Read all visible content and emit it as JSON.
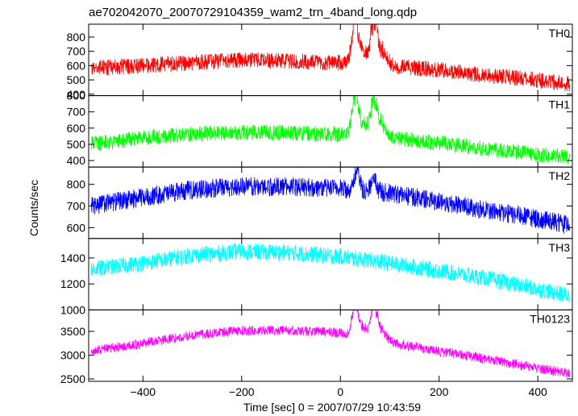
{
  "title": "ae702042070_20070729104359_wam2_trn_4band_long.qdp",
  "xlabel": "Time [sec] 0 = 2007/07/29 10:43:59",
  "ylabel": "Counts/sec",
  "chart_data": {
    "type": "line",
    "title": "ae702042070_20070729104359_wam2_trn_4band_long.qdp",
    "xlabel": "Time [sec] 0 = 2007/07/29 10:43:59",
    "ylabel": "Counts/sec",
    "xlim": [
      -510,
      470
    ],
    "xticks": [
      -400,
      -200,
      0,
      200,
      400
    ],
    "grid": false,
    "legend": "none (band names printed in top-right of each panel)",
    "panels": [
      {
        "name": "TH0",
        "color": "#ff0000",
        "ylim": [
          390,
          890
        ],
        "yticks": [
          400,
          500,
          600,
          700,
          800
        ],
        "noise": 70,
        "trend": [
          [
            -510,
            580
          ],
          [
            -400,
            600
          ],
          [
            -300,
            620
          ],
          [
            -200,
            640
          ],
          [
            -100,
            630
          ],
          [
            0,
            620
          ],
          [
            100,
            600
          ],
          [
            200,
            570
          ],
          [
            300,
            530
          ],
          [
            400,
            500
          ],
          [
            465,
            470
          ]
        ],
        "peaks": [
          [
            30,
            300,
            6
          ],
          [
            68,
            300,
            6
          ],
          [
            48,
            90,
            10
          ],
          [
            82,
            110,
            10
          ]
        ]
      },
      {
        "name": "TH1",
        "color": "#00ff00",
        "ylim": [
          360,
          800
        ],
        "yticks": [
          400,
          500,
          600,
          700,
          800
        ],
        "noise": 60,
        "trend": [
          [
            -510,
            500
          ],
          [
            -400,
            540
          ],
          [
            -300,
            565
          ],
          [
            -200,
            575
          ],
          [
            -100,
            570
          ],
          [
            0,
            560
          ],
          [
            100,
            540
          ],
          [
            200,
            510
          ],
          [
            300,
            470
          ],
          [
            400,
            440
          ],
          [
            465,
            420
          ]
        ],
        "peaks": [
          [
            30,
            270,
            6
          ],
          [
            68,
            200,
            6
          ],
          [
            48,
            70,
            10
          ],
          [
            82,
            90,
            10
          ]
        ]
      },
      {
        "name": "TH2",
        "color": "#0000ff",
        "ylim": [
          550,
          880
        ],
        "yticks": [
          600,
          700,
          800
        ],
        "noise": 55,
        "trend": [
          [
            -510,
            700
          ],
          [
            -400,
            740
          ],
          [
            -300,
            775
          ],
          [
            -200,
            790
          ],
          [
            -100,
            790
          ],
          [
            0,
            780
          ],
          [
            100,
            760
          ],
          [
            200,
            720
          ],
          [
            300,
            680
          ],
          [
            400,
            640
          ],
          [
            465,
            610
          ]
        ],
        "peaks": [
          [
            33,
            80,
            6
          ],
          [
            68,
            60,
            6
          ]
        ]
      },
      {
        "name": "TH3",
        "color": "#00ffff",
        "ylim": [
          1000,
          1550
        ],
        "yticks": [
          1000,
          1200,
          1400
        ],
        "noise": 80,
        "trend": [
          [
            -510,
            1310
          ],
          [
            -400,
            1360
          ],
          [
            -300,
            1420
          ],
          [
            -200,
            1450
          ],
          [
            -100,
            1440
          ],
          [
            0,
            1410
          ],
          [
            100,
            1360
          ],
          [
            200,
            1300
          ],
          [
            300,
            1240
          ],
          [
            400,
            1160
          ],
          [
            465,
            1110
          ]
        ],
        "peaks": []
      },
      {
        "name": "TH0123",
        "color": "#ff00ff",
        "ylim": [
          2450,
          3950
        ],
        "yticks": [
          2500,
          3000,
          3500
        ],
        "noise": 130,
        "trend": [
          [
            -510,
            3080
          ],
          [
            -400,
            3250
          ],
          [
            -300,
            3420
          ],
          [
            -200,
            3520
          ],
          [
            -100,
            3520
          ],
          [
            0,
            3470
          ],
          [
            100,
            3270
          ],
          [
            200,
            3080
          ],
          [
            300,
            2920
          ],
          [
            400,
            2720
          ],
          [
            465,
            2620
          ]
        ],
        "peaks": [
          [
            30,
            700,
            6
          ],
          [
            68,
            640,
            6
          ],
          [
            48,
            200,
            10
          ],
          [
            82,
            260,
            10
          ]
        ]
      }
    ]
  }
}
